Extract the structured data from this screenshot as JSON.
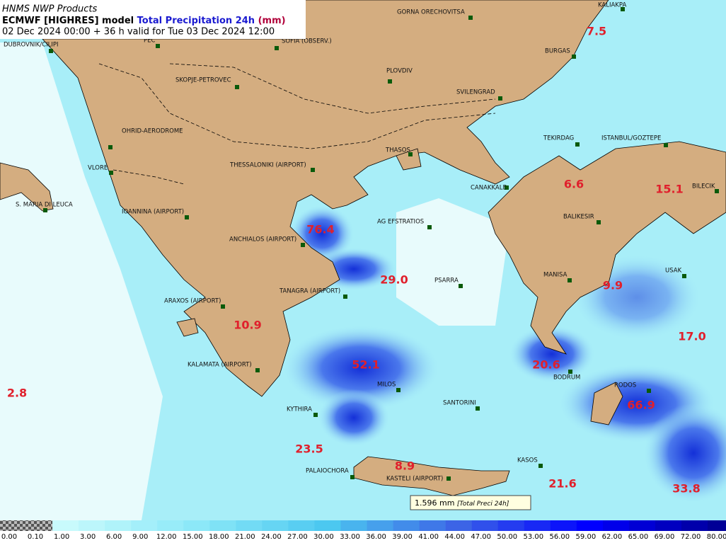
{
  "header": {
    "provider": "HNMS NWP Products",
    "model": "ECMWF [HIGHRES] model",
    "parameter": "Total Precipitation 24h",
    "unit": "(mm)",
    "validity": "02 Dec 2024 00:00 + 36 h valid for Tue 03 Dec 2024 12:00"
  },
  "stations": [
    "DUBROVNIK/CILIPI",
    "PEC",
    "SOFIA (OBSERV.)",
    "GORNA ORECHOVITSA",
    "KALIAKPA",
    "BURGAS",
    "SKOPJE-PETROVEC",
    "PLOVDIV",
    "SVILENGRAD",
    "OHRID-AERODROME",
    "TEKIRDAG",
    "ISTANBUL/GOZTEPE",
    "THASOS",
    "THESSALONIKI (AIRPORT)",
    "VLORE",
    "CANAKKALE",
    "BILECIK",
    "S. MARIA DI LEUCA",
    "IOANNINA (AIRPORT)",
    "AG EFSTRATIOS",
    "BALIKESIR",
    "ANCHIALOS (AIRPORT)",
    "USAK",
    "MANISA",
    "PSARRA",
    "TANAGRA (AIRPORT)",
    "ARAXOS (AIRPORT)",
    "KALAMATA (AIRPORT)",
    "BODRUM",
    "RODOS",
    "MILOS",
    "SANTORINI",
    "KYTHIRA",
    "KASOS",
    "PALAIOCHORA",
    "KASTELI (AIRPORT)"
  ],
  "values": [
    "7.5",
    "6.6",
    "15.1",
    "76.4",
    "29.0",
    "9.9",
    "10.9",
    "17.0",
    "52.1",
    "20.6",
    "2.8",
    "66.9",
    "23.5",
    "8.9",
    "21.6",
    "33.8"
  ],
  "tooltip": {
    "value": "1.596 mm",
    "parameter": "[Total Preci 24h]"
  },
  "legend": {
    "labels": [
      "0.00",
      "0.10",
      "1.00",
      "3.00",
      "6.00",
      "9.00",
      "12.00",
      "15.00",
      "18.00",
      "21.00",
      "24.00",
      "27.00",
      "30.00",
      "33.00",
      "36.00",
      "39.00",
      "41.00",
      "44.00",
      "47.00",
      "50.00",
      "53.00",
      "56.00",
      "59.00",
      "62.00",
      "65.00",
      "69.00",
      "72.00",
      "80.00"
    ]
  }
}
